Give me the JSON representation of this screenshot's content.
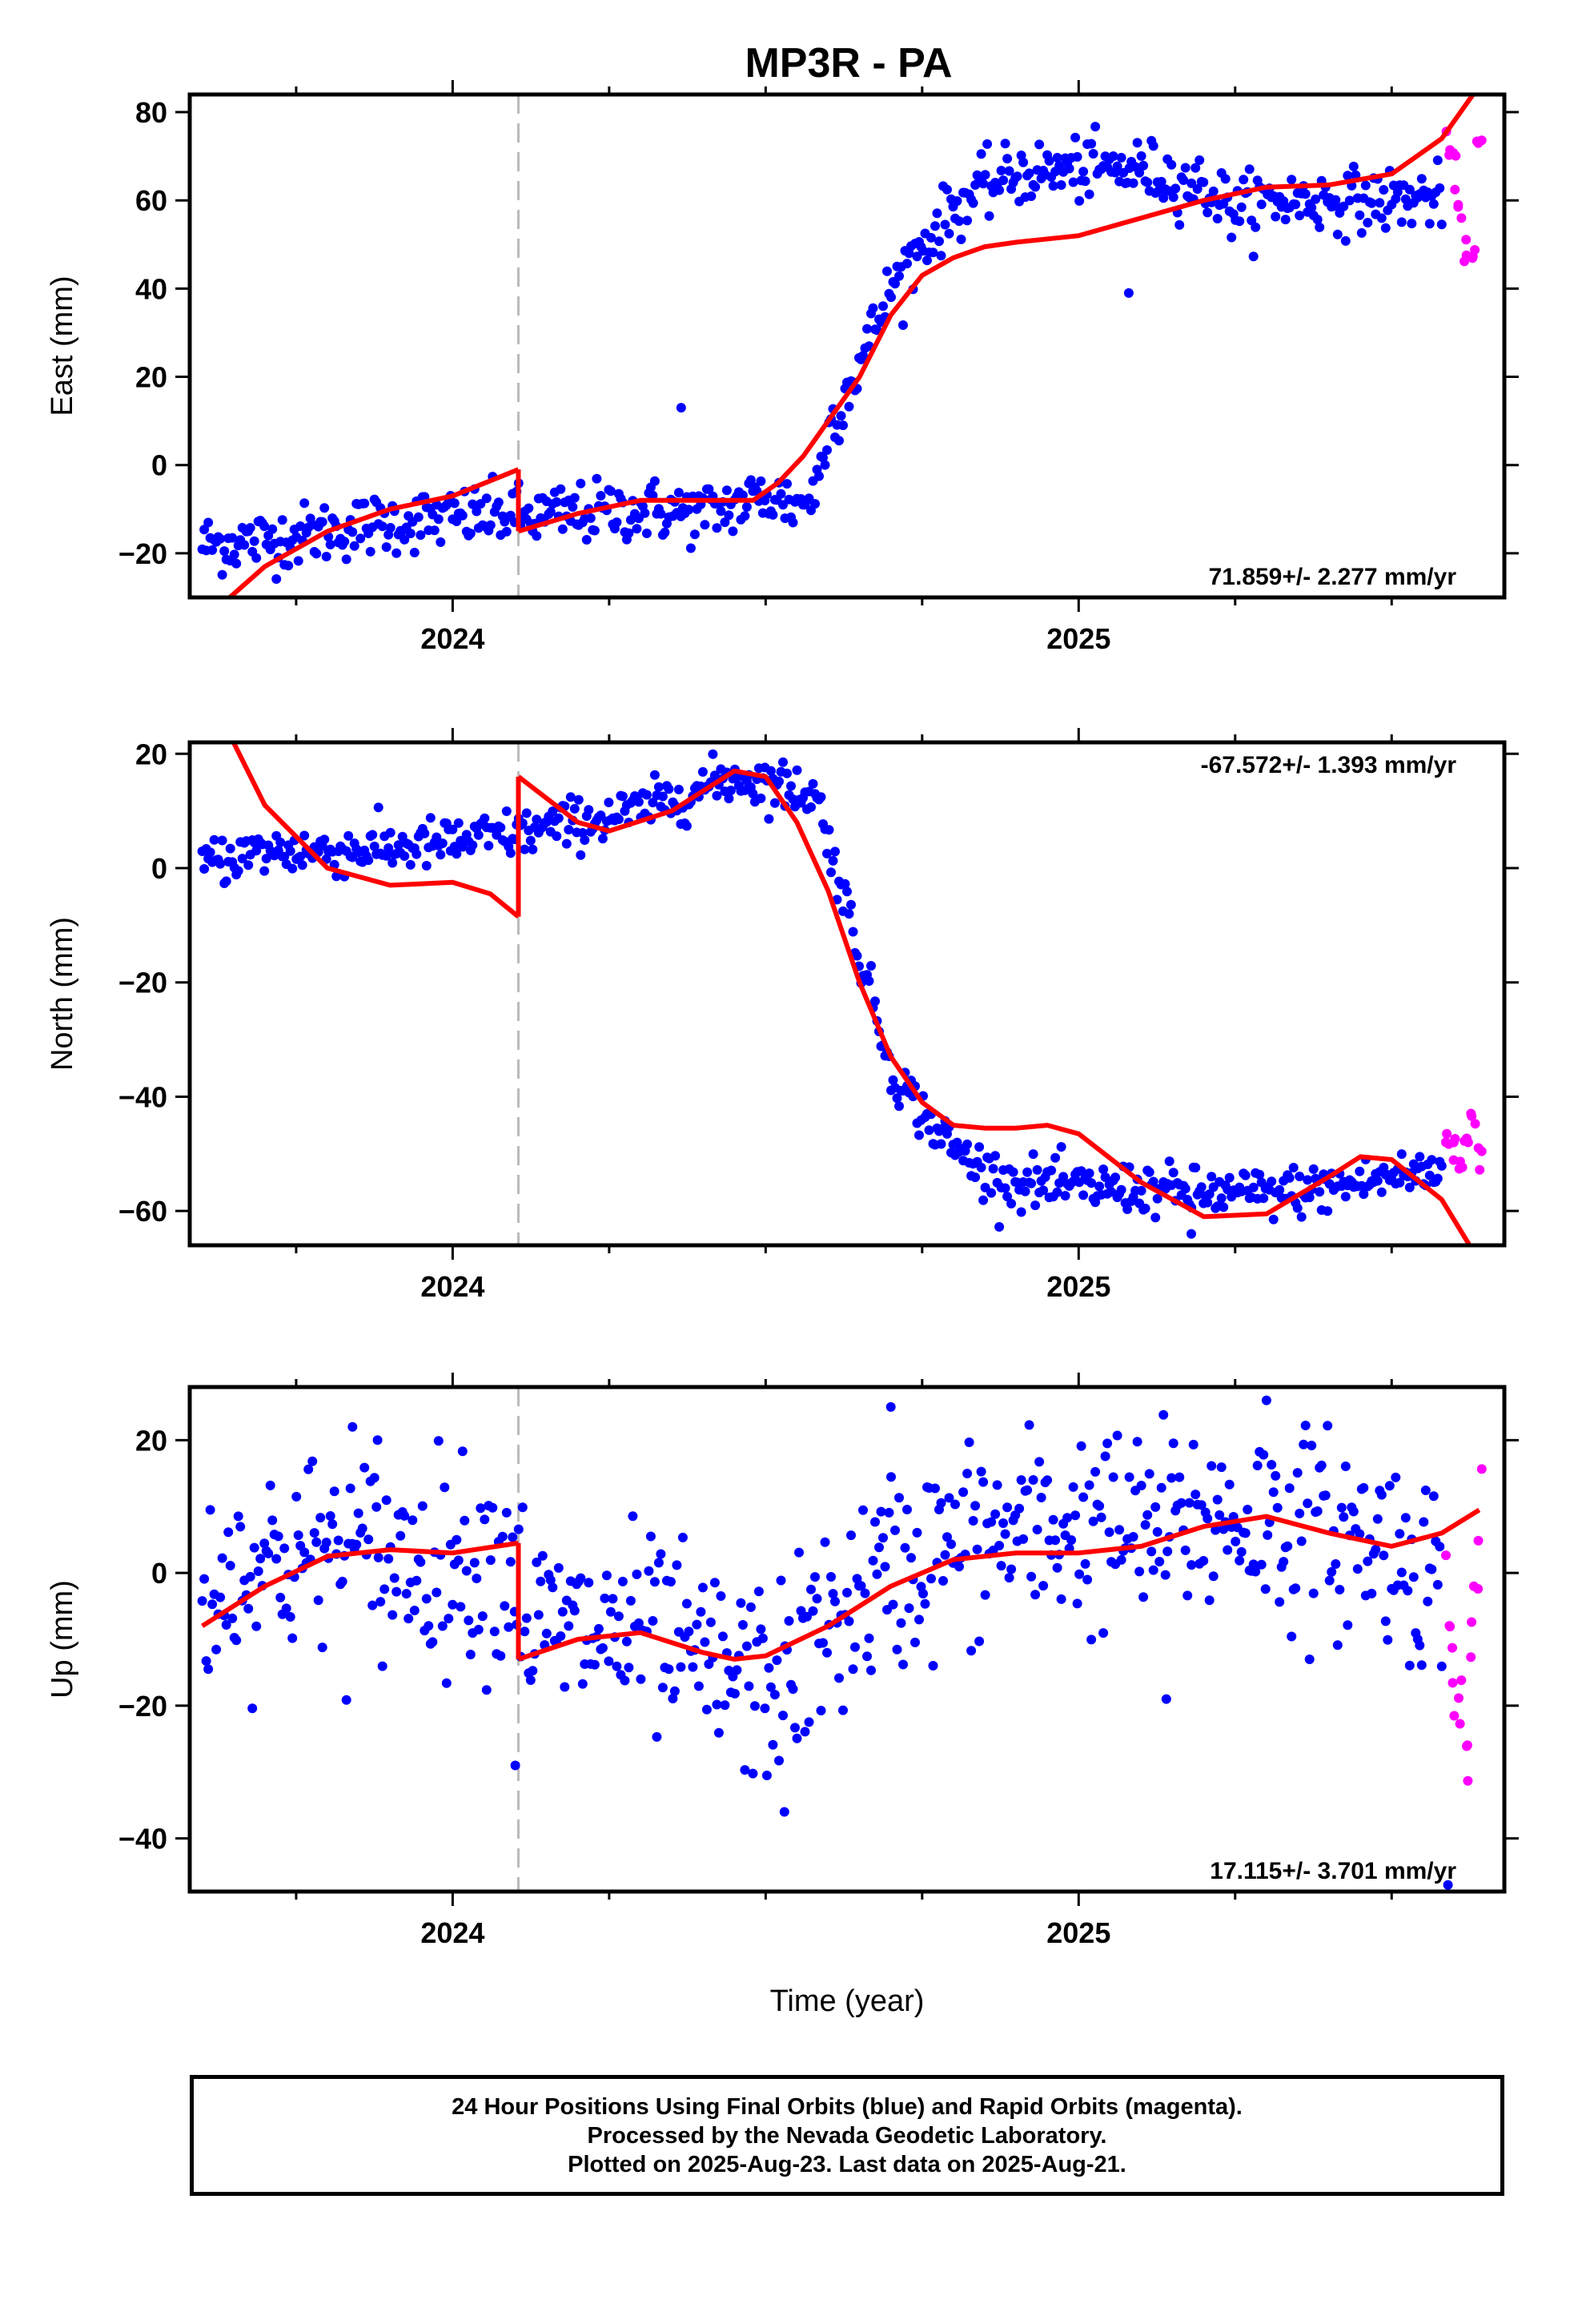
{
  "title": "MP3R - PA",
  "xlabel": "Time (year)",
  "caption": {
    "line1": "24 Hour Positions Using Final Orbits (blue) and Rapid Orbits (magenta).",
    "line2": "Processed by the Nevada Geodetic Laboratory.",
    "line3": "Plotted on 2025-Aug-23. Last data on 2025-Aug-21."
  },
  "colors": {
    "final": "#0000ff",
    "rapid": "#ff00ff",
    "model": "#ff0000",
    "event_line": "#bbbbbb"
  },
  "chart_data": [
    {
      "type": "scatter",
      "ylabel": "East (mm)",
      "rate_label": "71.859+/- 2.277 mm/yr",
      "rate_position": "bottom-right",
      "xlim": [
        2023.58,
        2025.68
      ],
      "ylim": [
        -30,
        84
      ],
      "yticks": [
        -20,
        0,
        20,
        40,
        60,
        80
      ],
      "xticks": [
        2024,
        2025
      ],
      "event_line_x": 2024.105,
      "final_trend": [
        [
          2023.6,
          -18
        ],
        [
          2023.7,
          -17
        ],
        [
          2023.8,
          -15
        ],
        [
          2023.9,
          -13
        ],
        [
          2024.0,
          -12
        ],
        [
          2024.1,
          -11
        ],
        [
          2024.11,
          -12
        ],
        [
          2024.2,
          -11
        ],
        [
          2024.3,
          -10
        ],
        [
          2024.4,
          -11
        ],
        [
          2024.5,
          -7
        ],
        [
          2024.55,
          -9
        ],
        [
          2024.58,
          -6
        ],
        [
          2024.6,
          8
        ],
        [
          2024.65,
          23
        ],
        [
          2024.7,
          40
        ],
        [
          2024.75,
          50
        ],
        [
          2024.8,
          58
        ],
        [
          2024.85,
          63
        ],
        [
          2024.9,
          66
        ],
        [
          2025.0,
          67
        ],
        [
          2025.1,
          67
        ],
        [
          2025.2,
          63
        ],
        [
          2025.25,
          58
        ],
        [
          2025.3,
          60
        ],
        [
          2025.4,
          60
        ],
        [
          2025.5,
          60
        ],
        [
          2025.58,
          61
        ]
      ],
      "rapid_trend": [
        [
          2025.59,
          70
        ],
        [
          2025.6,
          66
        ],
        [
          2025.61,
          58
        ],
        [
          2025.62,
          50
        ],
        [
          2025.63,
          46
        ],
        [
          2025.64,
          72
        ]
      ],
      "outliers": [
        [
          2024.365,
          13
        ],
        [
          2025.08,
          39
        ]
      ],
      "model": [
        [
          [
            2023.62,
            -33
          ],
          [
            2023.7,
            -23
          ],
          [
            2023.8,
            -15
          ],
          [
            2023.9,
            -10
          ],
          [
            2024.0,
            -7
          ],
          [
            2024.105,
            -1
          ]
        ],
        [
          [
            2024.105,
            -15
          ],
          [
            2024.2,
            -11
          ],
          [
            2024.3,
            -8
          ],
          [
            2024.4,
            -8
          ],
          [
            2024.48,
            -8
          ],
          [
            2024.52,
            -4
          ],
          [
            2024.56,
            2
          ],
          [
            2024.6,
            10
          ],
          [
            2024.65,
            20
          ],
          [
            2024.7,
            34
          ],
          [
            2024.75,
            43
          ],
          [
            2024.8,
            47
          ],
          [
            2024.85,
            49.5
          ],
          [
            2024.9,
            50.5
          ],
          [
            2025.0,
            52
          ],
          [
            2025.1,
            56
          ],
          [
            2025.2,
            60
          ],
          [
            2025.3,
            63
          ],
          [
            2025.4,
            63.5
          ],
          [
            2025.5,
            66
          ],
          [
            2025.58,
            74
          ],
          [
            2025.63,
            84
          ]
        ]
      ]
    },
    {
      "type": "scatter",
      "ylabel": "North (mm)",
      "rate_label": "-67.572+/- 1.393 mm/yr",
      "rate_position": "top-right",
      "xlim": [
        2023.58,
        2025.68
      ],
      "ylim": [
        -66,
        22
      ],
      "yticks": [
        -60,
        -40,
        -20,
        0,
        20
      ],
      "xticks": [
        2024,
        2025
      ],
      "event_line_x": 2024.105,
      "final_trend": [
        [
          2023.6,
          1
        ],
        [
          2023.7,
          3
        ],
        [
          2023.8,
          3
        ],
        [
          2023.9,
          3.5
        ],
        [
          2024.0,
          4.5
        ],
        [
          2024.1,
          6
        ],
        [
          2024.2,
          8
        ],
        [
          2024.3,
          10
        ],
        [
          2024.4,
          14
        ],
        [
          2024.45,
          16
        ],
        [
          2024.5,
          15
        ],
        [
          2024.58,
          13
        ],
        [
          2024.62,
          -3
        ],
        [
          2024.65,
          -15
        ],
        [
          2024.7,
          -35
        ],
        [
          2024.75,
          -43
        ],
        [
          2024.8,
          -49
        ],
        [
          2024.85,
          -53
        ],
        [
          2024.9,
          -55
        ],
        [
          2025.0,
          -56
        ],
        [
          2025.1,
          -56
        ],
        [
          2025.2,
          -57
        ],
        [
          2025.3,
          -57
        ],
        [
          2025.4,
          -56
        ],
        [
          2025.5,
          -54
        ],
        [
          2025.58,
          -53
        ]
      ],
      "rapid_trend": [
        [
          2025.59,
          -47
        ],
        [
          2025.6,
          -49
        ],
        [
          2025.61,
          -51
        ],
        [
          2025.62,
          -48
        ],
        [
          2025.63,
          -44
        ],
        [
          2025.64,
          -50
        ]
      ],
      "outliers": [
        [
          2025.18,
          -64
        ]
      ],
      "model": [
        [
          [
            2023.65,
            22
          ],
          [
            2023.7,
            11
          ],
          [
            2023.8,
            0
          ],
          [
            2023.9,
            -3
          ],
          [
            2024.0,
            -2.5
          ],
          [
            2024.06,
            -4.5
          ],
          [
            2024.105,
            -8.5
          ]
        ],
        [
          [
            2024.105,
            16
          ],
          [
            2024.2,
            8
          ],
          [
            2024.25,
            6.5
          ],
          [
            2024.35,
            10
          ],
          [
            2024.45,
            17
          ],
          [
            2024.5,
            16
          ],
          [
            2024.55,
            8
          ],
          [
            2024.6,
            -4
          ],
          [
            2024.65,
            -20
          ],
          [
            2024.7,
            -33
          ],
          [
            2024.75,
            -41
          ],
          [
            2024.8,
            -45
          ],
          [
            2024.85,
            -45.5
          ],
          [
            2024.9,
            -45.5
          ],
          [
            2024.95,
            -45
          ],
          [
            2025.0,
            -46.5
          ],
          [
            2025.1,
            -55
          ],
          [
            2025.2,
            -61
          ],
          [
            2025.3,
            -60.5
          ],
          [
            2025.4,
            -54
          ],
          [
            2025.45,
            -50.5
          ],
          [
            2025.5,
            -51
          ],
          [
            2025.58,
            -58
          ],
          [
            2025.63,
            -67
          ]
        ]
      ]
    },
    {
      "type": "scatter",
      "ylabel": "Up (mm)",
      "rate_label": "17.115+/- 3.701 mm/yr",
      "rate_position": "bottom-right",
      "xlim": [
        2023.58,
        2025.68
      ],
      "ylim": [
        -48,
        28
      ],
      "yticks": [
        -40,
        -20,
        0,
        20
      ],
      "xticks": [
        2024,
        2025
      ],
      "event_line_x": 2024.105,
      "final_trend": [
        [
          2023.6,
          -3
        ],
        [
          2023.7,
          2
        ],
        [
          2023.8,
          3
        ],
        [
          2023.9,
          2
        ],
        [
          2024.0,
          2
        ],
        [
          2024.1,
          2
        ],
        [
          2024.12,
          -8
        ],
        [
          2024.2,
          -9
        ],
        [
          2024.3,
          -9
        ],
        [
          2024.4,
          -14
        ],
        [
          2024.5,
          -17
        ],
        [
          2024.55,
          -14
        ],
        [
          2024.6,
          -8
        ],
        [
          2024.7,
          0
        ],
        [
          2024.8,
          4
        ],
        [
          2024.9,
          6
        ],
        [
          2025.0,
          7
        ],
        [
          2025.1,
          6
        ],
        [
          2025.2,
          8
        ],
        [
          2025.3,
          8
        ],
        [
          2025.4,
          6
        ],
        [
          2025.5,
          4
        ],
        [
          2025.58,
          -2
        ]
      ],
      "rapid_trend": [
        [
          2025.59,
          -3
        ],
        [
          2025.6,
          -12
        ],
        [
          2025.61,
          -20
        ],
        [
          2025.62,
          -28
        ],
        [
          2025.63,
          -5
        ],
        [
          2025.64,
          6
        ]
      ],
      "outliers": [
        [
          2024.1,
          -29
        ],
        [
          2024.53,
          -36
        ],
        [
          2025.14,
          -19
        ],
        [
          2025.59,
          -47
        ],
        [
          2023.84,
          22
        ],
        [
          2023.88,
          20
        ],
        [
          2024.7,
          25
        ],
        [
          2025.3,
          26
        ]
      ],
      "model": [
        [
          [
            2023.6,
            -8
          ],
          [
            2023.7,
            -2
          ],
          [
            2023.8,
            2.5
          ],
          [
            2023.9,
            3.5
          ],
          [
            2024.0,
            3
          ],
          [
            2024.105,
            4.5
          ]
        ],
        [
          [
            2024.105,
            -13
          ],
          [
            2024.2,
            -10
          ],
          [
            2024.3,
            -9
          ],
          [
            2024.4,
            -12
          ],
          [
            2024.45,
            -13
          ],
          [
            2024.5,
            -12.5
          ],
          [
            2024.6,
            -8
          ],
          [
            2024.7,
            -2
          ],
          [
            2024.8,
            2
          ],
          [
            2024.9,
            3
          ],
          [
            2025.0,
            3
          ],
          [
            2025.1,
            4
          ],
          [
            2025.2,
            7
          ],
          [
            2025.3,
            8.5
          ],
          [
            2025.4,
            6
          ],
          [
            2025.5,
            4
          ],
          [
            2025.58,
            6
          ],
          [
            2025.64,
            9.5
          ]
        ]
      ]
    }
  ]
}
